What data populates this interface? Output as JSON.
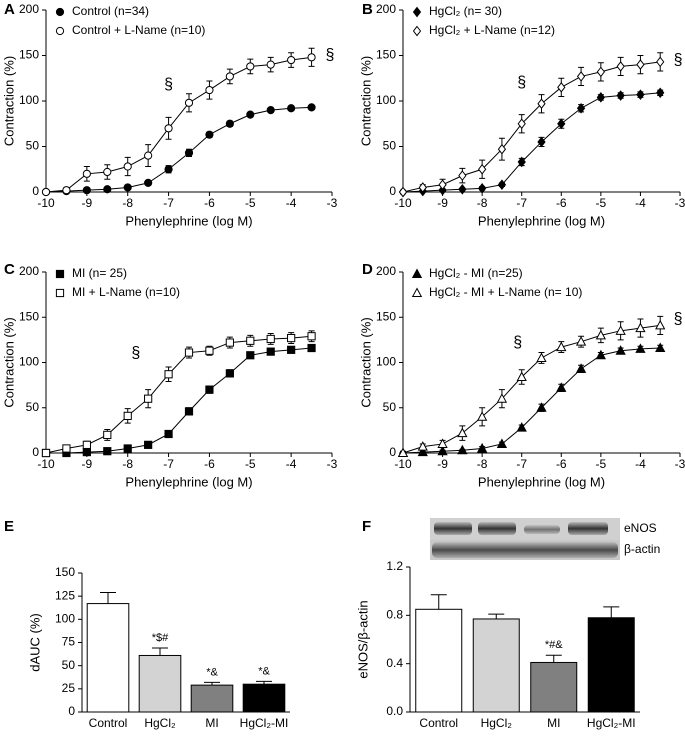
{
  "chart_data": [
    {
      "type": "line",
      "label": "A",
      "xlabel": "Phenylephrine (log M)",
      "ylabel": "Contraction (%)",
      "x": [
        -10,
        -9.5,
        -9,
        -8.5,
        -8,
        -7.5,
        -7,
        -6.5,
        -6,
        -5.5,
        -5,
        -4.5,
        -4,
        -3.5
      ],
      "xlim": [
        -10,
        -3
      ],
      "xticks": [
        -10,
        -9,
        -8,
        -7,
        -6,
        -5,
        -4,
        -3
      ],
      "ylim": [
        0,
        200
      ],
      "yticks": [
        0,
        50,
        100,
        150,
        200
      ],
      "series": [
        {
          "name": "Control (n=34)",
          "color": "#000000",
          "marker": "circle",
          "filled": true,
          "values": [
            0,
            1,
            2,
            3,
            5,
            10,
            25,
            43,
            63,
            75,
            85,
            90,
            92,
            93
          ],
          "errors": [
            1,
            1,
            1,
            1,
            2,
            2,
            4,
            4,
            3,
            3,
            2,
            2,
            2,
            2
          ]
        },
        {
          "name": "Control + L-Name (n=10)",
          "color": "#000000",
          "marker": "circle",
          "filled": false,
          "values": [
            0,
            2,
            20,
            22,
            28,
            40,
            70,
            98,
            112,
            127,
            138,
            140,
            145,
            148
          ],
          "errors": [
            2,
            3,
            8,
            8,
            10,
            12,
            12,
            10,
            10,
            8,
            8,
            8,
            8,
            10
          ]
        }
      ],
      "annotations": [
        "§",
        "§"
      ]
    },
    {
      "type": "line",
      "label": "B",
      "xlabel": "Phenylephrine (log M)",
      "ylabel": "Contraction (%)",
      "x": [
        -10,
        -9.5,
        -9,
        -8.5,
        -8,
        -7.5,
        -7,
        -6.5,
        -6,
        -5.5,
        -5,
        -4.5,
        -4,
        -3.5
      ],
      "xlim": [
        -10,
        -3
      ],
      "xticks": [
        -10,
        -9,
        -8,
        -7,
        -6,
        -5,
        -4,
        -3
      ],
      "ylim": [
        0,
        200
      ],
      "yticks": [
        0,
        50,
        100,
        150,
        200
      ],
      "series": [
        {
          "name": "HgCl₂ (n= 30)",
          "color": "#000000",
          "marker": "diamond",
          "filled": true,
          "values": [
            0,
            1,
            2,
            3,
            4,
            8,
            33,
            55,
            75,
            92,
            104,
            106,
            107,
            109
          ],
          "errors": [
            1,
            1,
            1,
            1,
            2,
            2,
            4,
            5,
            5,
            4,
            3,
            3,
            3,
            3
          ]
        },
        {
          "name": "HgCl₂ + L-Name (n=12)",
          "color": "#000000",
          "marker": "diamond",
          "filled": false,
          "values": [
            0,
            5,
            8,
            18,
            25,
            47,
            75,
            97,
            115,
            127,
            132,
            138,
            140,
            143
          ],
          "errors": [
            2,
            3,
            6,
            8,
            10,
            12,
            10,
            10,
            10,
            10,
            10,
            10,
            10,
            10
          ]
        }
      ],
      "annotations": [
        "§",
        "§"
      ]
    },
    {
      "type": "line",
      "label": "C",
      "xlabel": "Phenylephrine (log M)",
      "ylabel": "Contraction (%)",
      "x": [
        -10,
        -9.5,
        -9,
        -8.5,
        -8,
        -7.5,
        -7,
        -6.5,
        -6,
        -5.5,
        -5,
        -4.5,
        -4,
        -3.5
      ],
      "xlim": [
        -10,
        -3
      ],
      "xticks": [
        -10,
        -9,
        -8,
        -7,
        -6,
        -5,
        -4,
        -3
      ],
      "ylim": [
        0,
        200
      ],
      "yticks": [
        0,
        50,
        100,
        150,
        200
      ],
      "series": [
        {
          "name": "MI (n= 25)",
          "color": "#000000",
          "marker": "square",
          "filled": true,
          "values": [
            0,
            0,
            1,
            2,
            5,
            9,
            21,
            46,
            70,
            88,
            108,
            112,
            114,
            116
          ],
          "errors": [
            1,
            1,
            1,
            1,
            1,
            2,
            3,
            4,
            4,
            4,
            3,
            3,
            3,
            3
          ]
        },
        {
          "name": "MI + L-Name (n=10)",
          "color": "#000000",
          "marker": "square",
          "filled": false,
          "values": [
            0,
            5,
            9,
            20,
            41,
            60,
            87,
            111,
            113,
            122,
            124,
            126,
            127,
            129
          ],
          "errors": [
            2,
            3,
            4,
            6,
            8,
            10,
            8,
            6,
            5,
            6,
            6,
            6,
            6,
            6
          ]
        }
      ],
      "annotations": [
        "§"
      ]
    },
    {
      "type": "line",
      "label": "D",
      "xlabel": "Phenylephrine (log M)",
      "ylabel": "Contraction (%)",
      "x": [
        -10,
        -9.5,
        -9,
        -8.5,
        -8,
        -7.5,
        -7,
        -6.5,
        -6,
        -5.5,
        -5,
        -4.5,
        -4,
        -3.5
      ],
      "xlim": [
        -10,
        -3
      ],
      "xticks": [
        -10,
        -9,
        -8,
        -7,
        -6,
        -5,
        -4,
        -3
      ],
      "ylim": [
        0,
        200
      ],
      "yticks": [
        0,
        50,
        100,
        150,
        200
      ],
      "series": [
        {
          "name": "HgCl₂ - MI (n=25)",
          "color": "#000000",
          "marker": "triangle",
          "filled": true,
          "values": [
            0,
            1,
            2,
            3,
            5,
            10,
            28,
            50,
            72,
            93,
            108,
            113,
            115,
            116
          ],
          "errors": [
            1,
            1,
            1,
            1,
            2,
            2,
            3,
            4,
            4,
            4,
            3,
            3,
            3,
            3
          ]
        },
        {
          "name": "HgCl₂ - MI + L-Name (n= 10)",
          "color": "#000000",
          "marker": "triangle",
          "filled": false,
          "values": [
            0,
            7,
            10,
            22,
            40,
            60,
            84,
            105,
            117,
            123,
            130,
            135,
            138,
            141
          ],
          "errors": [
            2,
            3,
            4,
            8,
            10,
            10,
            8,
            6,
            6,
            6,
            8,
            10,
            10,
            10
          ]
        }
      ],
      "annotations": [
        "§",
        "§"
      ]
    },
    {
      "type": "bar",
      "label": "E",
      "ylabel": "dAUC (%)",
      "categories": [
        "Control",
        "HgCl₂",
        "MI",
        "HgCl₂-MI"
      ],
      "values": [
        117,
        61,
        29,
        30
      ],
      "errors": [
        12,
        8,
        3,
        3
      ],
      "colors": [
        "#ffffff",
        "#d3d3d3",
        "#808080",
        "#000000"
      ],
      "ylim": [
        0,
        150
      ],
      "yticks": [
        0,
        25,
        50,
        75,
        100,
        125,
        150
      ],
      "annotations": [
        "*$#",
        "*&",
        "*&"
      ]
    },
    {
      "type": "bar",
      "label": "F",
      "ylabel": "eNOS/β-actin",
      "categories": [
        "Control",
        "HgCl₂",
        "MI",
        "HgCl₂-MI"
      ],
      "values": [
        0.85,
        0.77,
        0.41,
        0.78
      ],
      "errors": [
        0.12,
        0.04,
        0.06,
        0.09
      ],
      "colors": [
        "#ffffff",
        "#d3d3d3",
        "#808080",
        "#000000"
      ],
      "ylim": [
        0,
        1.2
      ],
      "yticks": [
        {
          "value": 0,
          "label": "0.0"
        },
        0.4,
        0.8,
        1.2
      ],
      "annotations": [
        "*#&"
      ],
      "blot_labels": [
        "eNOS",
        "β-actin"
      ]
    }
  ]
}
